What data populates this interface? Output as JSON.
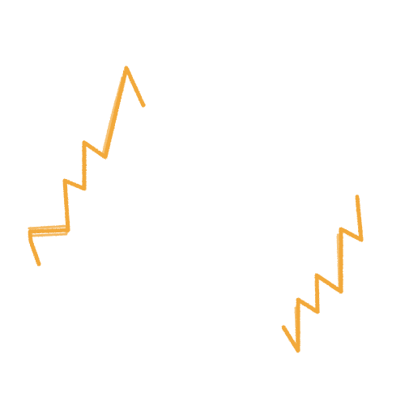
{
  "canvas": {
    "background": "#ffffff"
  },
  "strokes": {
    "color": "#f2a93b",
    "texture": "crayon",
    "items": [
      {
        "name": "zigzag-stroke-left"
      },
      {
        "name": "zigzag-stroke-right"
      }
    ]
  }
}
